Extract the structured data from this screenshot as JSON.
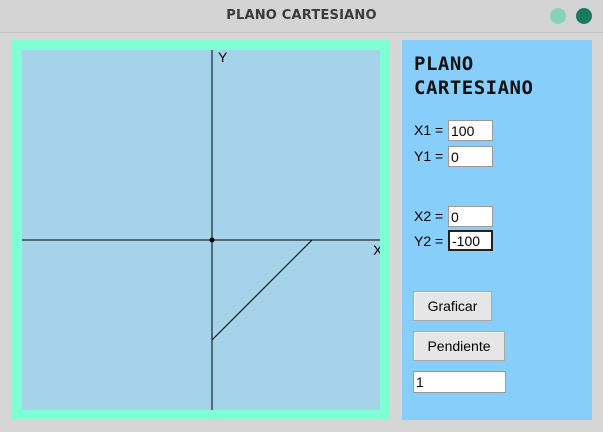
{
  "window": {
    "title": "PLANO CARTESIANO"
  },
  "panel": {
    "heading_line1": "PLANO",
    "heading_line2": "CARTESIANO",
    "x1_label": "X1 =",
    "x1_value": "100",
    "y1_label": "Y1 =",
    "y1_value": "0",
    "x2_label": "X2 =",
    "x2_value": "0",
    "y2_label": "Y2 =",
    "y2_value": "-100",
    "graph_button": "Graficar",
    "slope_button": "Pendiente",
    "slope_result": "1"
  },
  "plane": {
    "x_axis_label": "X",
    "y_axis_label": "Y",
    "segment": {
      "x1": 100,
      "y1": 0,
      "x2": 0,
      "y2": -100
    }
  }
}
